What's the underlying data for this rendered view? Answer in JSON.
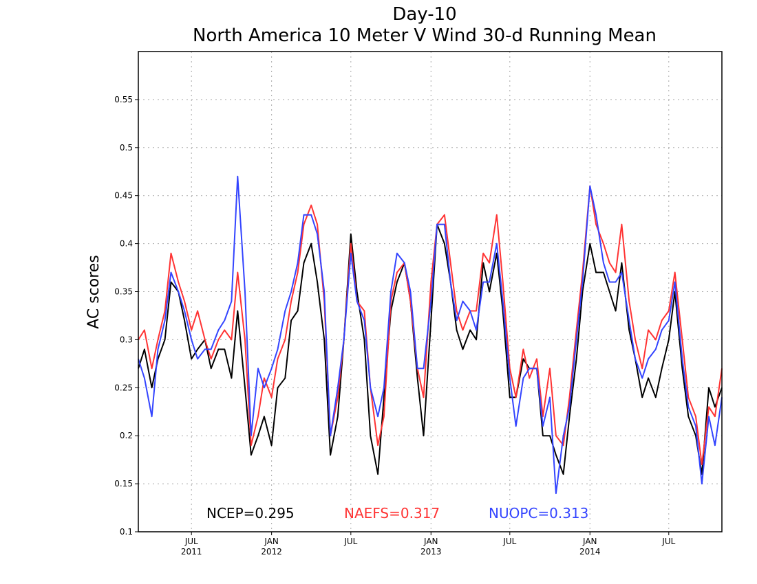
{
  "chart_data": {
    "type": "line",
    "title": "Day-10",
    "subtitle": "North America 10 Meter V Wind 30-d Running Mean",
    "xlabel": "",
    "ylabel": "AC scores",
    "x_range": [
      "2011-03-01",
      "2014-10-31"
    ],
    "ylim": [
      0.1,
      0.6
    ],
    "y_ticks": [
      0.1,
      0.15,
      0.2,
      0.25,
      0.3,
      0.35,
      0.4,
      0.45,
      0.5,
      0.55
    ],
    "y_tick_labels": [
      "0.1",
      "0.15",
      "0.2",
      "0.25",
      "0.3",
      "0.35",
      "0.4",
      "0.45",
      "0.5",
      "0.55"
    ],
    "x_ticks": [
      {
        "date": "2011-07-01",
        "label": "JUL",
        "year": "2011"
      },
      {
        "date": "2012-01-01",
        "label": "JAN",
        "year": "2012"
      },
      {
        "date": "2012-07-01",
        "label": "JUL",
        "year": ""
      },
      {
        "date": "2013-01-01",
        "label": "JAN",
        "year": "2013"
      },
      {
        "date": "2013-07-01",
        "label": "JUL",
        "year": ""
      },
      {
        "date": "2014-01-01",
        "label": "JAN",
        "year": "2014"
      },
      {
        "date": "2014-07-01",
        "label": "JUL",
        "year": ""
      }
    ],
    "grid": true,
    "series": [
      {
        "name": "NCEP",
        "color": "#000000",
        "mean_label": "NCEP=0.295",
        "points": [
          [
            "2011-03-01",
            0.27
          ],
          [
            "2011-03-15",
            0.29
          ],
          [
            "2011-04-01",
            0.25
          ],
          [
            "2011-04-15",
            0.28
          ],
          [
            "2011-05-01",
            0.3
          ],
          [
            "2011-05-15",
            0.36
          ],
          [
            "2011-06-01",
            0.35
          ],
          [
            "2011-06-15",
            0.32
          ],
          [
            "2011-07-01",
            0.28
          ],
          [
            "2011-07-15",
            0.29
          ],
          [
            "2011-08-01",
            0.3
          ],
          [
            "2011-08-15",
            0.27
          ],
          [
            "2011-09-01",
            0.29
          ],
          [
            "2011-09-15",
            0.29
          ],
          [
            "2011-10-01",
            0.26
          ],
          [
            "2011-10-15",
            0.33
          ],
          [
            "2011-11-01",
            0.25
          ],
          [
            "2011-11-15",
            0.18
          ],
          [
            "2011-12-01",
            0.2
          ],
          [
            "2011-12-15",
            0.22
          ],
          [
            "2012-01-01",
            0.19
          ],
          [
            "2012-01-15",
            0.25
          ],
          [
            "2012-02-01",
            0.26
          ],
          [
            "2012-02-15",
            0.32
          ],
          [
            "2012-03-01",
            0.33
          ],
          [
            "2012-03-15",
            0.38
          ],
          [
            "2012-04-01",
            0.4
          ],
          [
            "2012-04-15",
            0.36
          ],
          [
            "2012-05-01",
            0.3
          ],
          [
            "2012-05-15",
            0.18
          ],
          [
            "2012-06-01",
            0.22
          ],
          [
            "2012-06-15",
            0.3
          ],
          [
            "2012-07-01",
            0.41
          ],
          [
            "2012-07-15",
            0.35
          ],
          [
            "2012-08-01",
            0.3
          ],
          [
            "2012-08-15",
            0.2
          ],
          [
            "2012-09-01",
            0.16
          ],
          [
            "2012-09-15",
            0.24
          ],
          [
            "2012-10-01",
            0.33
          ],
          [
            "2012-10-15",
            0.36
          ],
          [
            "2012-11-01",
            0.38
          ],
          [
            "2012-11-15",
            0.34
          ],
          [
            "2012-12-01",
            0.26
          ],
          [
            "2012-12-15",
            0.2
          ],
          [
            "2013-01-01",
            0.32
          ],
          [
            "2013-01-15",
            0.42
          ],
          [
            "2013-02-01",
            0.4
          ],
          [
            "2013-02-15",
            0.36
          ],
          [
            "2013-03-01",
            0.31
          ],
          [
            "2013-03-15",
            0.29
          ],
          [
            "2013-04-01",
            0.31
          ],
          [
            "2013-04-15",
            0.3
          ],
          [
            "2013-05-01",
            0.38
          ],
          [
            "2013-05-15",
            0.35
          ],
          [
            "2013-06-01",
            0.39
          ],
          [
            "2013-06-15",
            0.33
          ],
          [
            "2013-07-01",
            0.24
          ],
          [
            "2013-07-15",
            0.24
          ],
          [
            "2013-08-01",
            0.28
          ],
          [
            "2013-08-15",
            0.27
          ],
          [
            "2013-09-01",
            0.27
          ],
          [
            "2013-09-15",
            0.2
          ],
          [
            "2013-10-01",
            0.2
          ],
          [
            "2013-10-15",
            0.18
          ],
          [
            "2013-11-01",
            0.16
          ],
          [
            "2013-11-15",
            0.22
          ],
          [
            "2013-12-01",
            0.28
          ],
          [
            "2013-12-15",
            0.35
          ],
          [
            "2014-01-01",
            0.4
          ],
          [
            "2014-01-15",
            0.37
          ],
          [
            "2014-02-01",
            0.37
          ],
          [
            "2014-02-15",
            0.35
          ],
          [
            "2014-03-01",
            0.33
          ],
          [
            "2014-03-15",
            0.38
          ],
          [
            "2014-04-01",
            0.31
          ],
          [
            "2014-04-15",
            0.28
          ],
          [
            "2014-05-01",
            0.24
          ],
          [
            "2014-05-15",
            0.26
          ],
          [
            "2014-06-01",
            0.24
          ],
          [
            "2014-06-15",
            0.27
          ],
          [
            "2014-07-01",
            0.3
          ],
          [
            "2014-07-15",
            0.35
          ],
          [
            "2014-08-01",
            0.27
          ],
          [
            "2014-08-15",
            0.22
          ],
          [
            "2014-09-01",
            0.2
          ],
          [
            "2014-09-15",
            0.16
          ],
          [
            "2014-10-01",
            0.25
          ],
          [
            "2014-10-15",
            0.23
          ],
          [
            "2014-10-31",
            0.25
          ]
        ]
      },
      {
        "name": "NAEFS",
        "color": "#ff3333",
        "mean_label": "NAEFS=0.317",
        "points": [
          [
            "2011-03-01",
            0.3
          ],
          [
            "2011-03-15",
            0.31
          ],
          [
            "2011-04-01",
            0.27
          ],
          [
            "2011-04-15",
            0.3
          ],
          [
            "2011-05-01",
            0.33
          ],
          [
            "2011-05-15",
            0.39
          ],
          [
            "2011-06-01",
            0.36
          ],
          [
            "2011-06-15",
            0.34
          ],
          [
            "2011-07-01",
            0.31
          ],
          [
            "2011-07-15",
            0.33
          ],
          [
            "2011-08-01",
            0.3
          ],
          [
            "2011-08-15",
            0.28
          ],
          [
            "2011-09-01",
            0.3
          ],
          [
            "2011-09-15",
            0.31
          ],
          [
            "2011-10-01",
            0.3
          ],
          [
            "2011-10-15",
            0.37
          ],
          [
            "2011-11-01",
            0.3
          ],
          [
            "2011-11-15",
            0.19
          ],
          [
            "2011-12-01",
            0.22
          ],
          [
            "2011-12-15",
            0.26
          ],
          [
            "2012-01-01",
            0.24
          ],
          [
            "2012-01-15",
            0.28
          ],
          [
            "2012-02-01",
            0.3
          ],
          [
            "2012-02-15",
            0.34
          ],
          [
            "2012-03-01",
            0.37
          ],
          [
            "2012-03-15",
            0.42
          ],
          [
            "2012-04-01",
            0.44
          ],
          [
            "2012-04-15",
            0.42
          ],
          [
            "2012-05-01",
            0.34
          ],
          [
            "2012-05-15",
            0.2
          ],
          [
            "2012-06-01",
            0.24
          ],
          [
            "2012-06-15",
            0.3
          ],
          [
            "2012-07-01",
            0.4
          ],
          [
            "2012-07-15",
            0.34
          ],
          [
            "2012-08-01",
            0.33
          ],
          [
            "2012-08-15",
            0.25
          ],
          [
            "2012-09-01",
            0.19
          ],
          [
            "2012-09-15",
            0.22
          ],
          [
            "2012-10-01",
            0.34
          ],
          [
            "2012-10-15",
            0.37
          ],
          [
            "2012-11-01",
            0.38
          ],
          [
            "2012-11-15",
            0.34
          ],
          [
            "2012-12-01",
            0.27
          ],
          [
            "2012-12-15",
            0.24
          ],
          [
            "2013-01-01",
            0.36
          ],
          [
            "2013-01-15",
            0.42
          ],
          [
            "2013-02-01",
            0.43
          ],
          [
            "2013-02-15",
            0.38
          ],
          [
            "2013-03-01",
            0.33
          ],
          [
            "2013-03-15",
            0.31
          ],
          [
            "2013-04-01",
            0.33
          ],
          [
            "2013-04-15",
            0.33
          ],
          [
            "2013-05-01",
            0.39
          ],
          [
            "2013-05-15",
            0.38
          ],
          [
            "2013-06-01",
            0.43
          ],
          [
            "2013-06-15",
            0.36
          ],
          [
            "2013-07-01",
            0.27
          ],
          [
            "2013-07-15",
            0.24
          ],
          [
            "2013-08-01",
            0.29
          ],
          [
            "2013-08-15",
            0.26
          ],
          [
            "2013-09-01",
            0.28
          ],
          [
            "2013-09-15",
            0.22
          ],
          [
            "2013-10-01",
            0.27
          ],
          [
            "2013-10-15",
            0.2
          ],
          [
            "2013-11-01",
            0.19
          ],
          [
            "2013-11-15",
            0.24
          ],
          [
            "2013-12-01",
            0.31
          ],
          [
            "2013-12-15",
            0.37
          ],
          [
            "2014-01-01",
            0.46
          ],
          [
            "2014-01-15",
            0.42
          ],
          [
            "2014-02-01",
            0.4
          ],
          [
            "2014-02-15",
            0.38
          ],
          [
            "2014-03-01",
            0.37
          ],
          [
            "2014-03-15",
            0.42
          ],
          [
            "2014-04-01",
            0.34
          ],
          [
            "2014-04-15",
            0.3
          ],
          [
            "2014-05-01",
            0.27
          ],
          [
            "2014-05-15",
            0.31
          ],
          [
            "2014-06-01",
            0.3
          ],
          [
            "2014-06-15",
            0.32
          ],
          [
            "2014-07-01",
            0.33
          ],
          [
            "2014-07-15",
            0.37
          ],
          [
            "2014-08-01",
            0.3
          ],
          [
            "2014-08-15",
            0.24
          ],
          [
            "2014-09-01",
            0.22
          ],
          [
            "2014-09-15",
            0.17
          ],
          [
            "2014-10-01",
            0.23
          ],
          [
            "2014-10-15",
            0.22
          ],
          [
            "2014-10-31",
            0.27
          ]
        ]
      },
      {
        "name": "NUOPC",
        "color": "#3344ff",
        "mean_label": "NUOPC=0.313",
        "points": [
          [
            "2011-03-01",
            0.28
          ],
          [
            "2011-03-15",
            0.26
          ],
          [
            "2011-04-01",
            0.22
          ],
          [
            "2011-04-15",
            0.29
          ],
          [
            "2011-05-01",
            0.32
          ],
          [
            "2011-05-15",
            0.37
          ],
          [
            "2011-06-01",
            0.35
          ],
          [
            "2011-06-15",
            0.33
          ],
          [
            "2011-07-01",
            0.3
          ],
          [
            "2011-07-15",
            0.28
          ],
          [
            "2011-08-01",
            0.29
          ],
          [
            "2011-08-15",
            0.29
          ],
          [
            "2011-09-01",
            0.31
          ],
          [
            "2011-09-15",
            0.32
          ],
          [
            "2011-10-01",
            0.34
          ],
          [
            "2011-10-15",
            0.47
          ],
          [
            "2011-11-01",
            0.35
          ],
          [
            "2011-11-15",
            0.2
          ],
          [
            "2011-12-01",
            0.27
          ],
          [
            "2011-12-15",
            0.25
          ],
          [
            "2012-01-01",
            0.27
          ],
          [
            "2012-01-15",
            0.29
          ],
          [
            "2012-02-01",
            0.33
          ],
          [
            "2012-02-15",
            0.35
          ],
          [
            "2012-03-01",
            0.38
          ],
          [
            "2012-03-15",
            0.43
          ],
          [
            "2012-04-01",
            0.43
          ],
          [
            "2012-04-15",
            0.41
          ],
          [
            "2012-05-01",
            0.35
          ],
          [
            "2012-05-15",
            0.2
          ],
          [
            "2012-06-01",
            0.25
          ],
          [
            "2012-06-15",
            0.3
          ],
          [
            "2012-07-01",
            0.39
          ],
          [
            "2012-07-15",
            0.34
          ],
          [
            "2012-08-01",
            0.32
          ],
          [
            "2012-08-15",
            0.25
          ],
          [
            "2012-09-01",
            0.22
          ],
          [
            "2012-09-15",
            0.25
          ],
          [
            "2012-10-01",
            0.35
          ],
          [
            "2012-10-15",
            0.39
          ],
          [
            "2012-11-01",
            0.38
          ],
          [
            "2012-11-15",
            0.35
          ],
          [
            "2012-12-01",
            0.27
          ],
          [
            "2012-12-15",
            0.27
          ],
          [
            "2013-01-01",
            0.34
          ],
          [
            "2013-01-15",
            0.42
          ],
          [
            "2013-02-01",
            0.42
          ],
          [
            "2013-02-15",
            0.36
          ],
          [
            "2013-03-01",
            0.32
          ],
          [
            "2013-03-15",
            0.34
          ],
          [
            "2013-04-01",
            0.33
          ],
          [
            "2013-04-15",
            0.31
          ],
          [
            "2013-05-01",
            0.36
          ],
          [
            "2013-05-15",
            0.36
          ],
          [
            "2013-06-01",
            0.4
          ],
          [
            "2013-06-15",
            0.34
          ],
          [
            "2013-07-01",
            0.26
          ],
          [
            "2013-07-15",
            0.21
          ],
          [
            "2013-08-01",
            0.26
          ],
          [
            "2013-08-15",
            0.27
          ],
          [
            "2013-09-01",
            0.27
          ],
          [
            "2013-09-15",
            0.21
          ],
          [
            "2013-10-01",
            0.24
          ],
          [
            "2013-10-15",
            0.14
          ],
          [
            "2013-11-01",
            0.2
          ],
          [
            "2013-11-15",
            0.23
          ],
          [
            "2013-12-01",
            0.3
          ],
          [
            "2013-12-15",
            0.36
          ],
          [
            "2014-01-01",
            0.46
          ],
          [
            "2014-01-15",
            0.43
          ],
          [
            "2014-02-01",
            0.38
          ],
          [
            "2014-02-15",
            0.36
          ],
          [
            "2014-03-01",
            0.36
          ],
          [
            "2014-03-15",
            0.37
          ],
          [
            "2014-04-01",
            0.32
          ],
          [
            "2014-04-15",
            0.28
          ],
          [
            "2014-05-01",
            0.26
          ],
          [
            "2014-05-15",
            0.28
          ],
          [
            "2014-06-01",
            0.29
          ],
          [
            "2014-06-15",
            0.31
          ],
          [
            "2014-07-01",
            0.32
          ],
          [
            "2014-07-15",
            0.36
          ],
          [
            "2014-08-01",
            0.28
          ],
          [
            "2014-08-15",
            0.23
          ],
          [
            "2014-09-01",
            0.21
          ],
          [
            "2014-09-15",
            0.15
          ],
          [
            "2014-10-01",
            0.22
          ],
          [
            "2014-10-15",
            0.19
          ],
          [
            "2014-10-31",
            0.24
          ]
        ]
      }
    ]
  }
}
